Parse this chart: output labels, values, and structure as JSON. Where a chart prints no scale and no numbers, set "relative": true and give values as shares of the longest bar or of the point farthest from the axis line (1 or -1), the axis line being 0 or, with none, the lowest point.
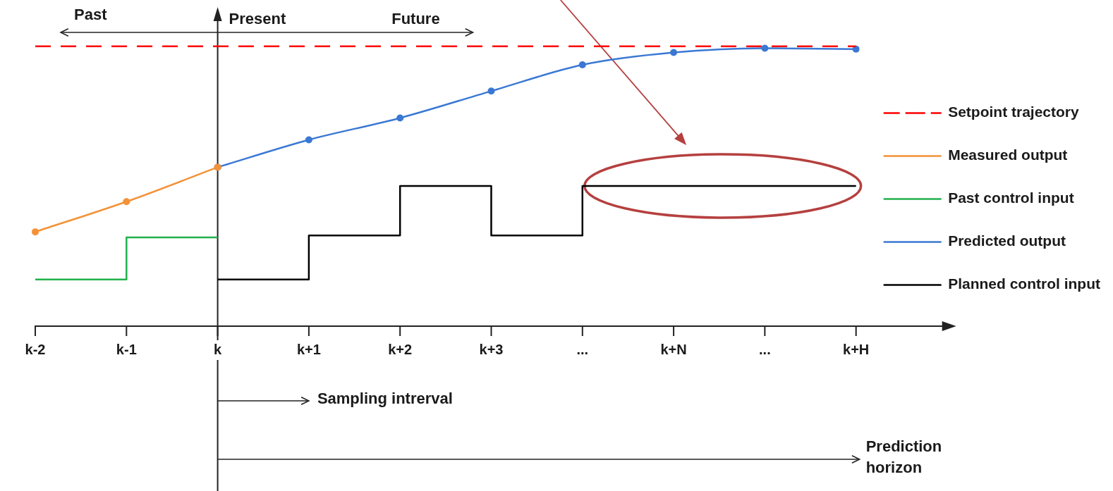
{
  "chart_data": {
    "type": "line",
    "relative": true,
    "categories": [
      "k-2",
      "k-1",
      "k",
      "k+1",
      "k+2",
      "k+3",
      "...",
      "k+N",
      "...",
      "k+H"
    ],
    "series": [
      {
        "name": "Setpoint trajectory",
        "color": "#ff0000",
        "line_style": "dashed",
        "marker": "none",
        "values": [
          1,
          1,
          1,
          1,
          1,
          1,
          1,
          1,
          1,
          1
        ]
      },
      {
        "name": "Measured output",
        "color": "#f39237",
        "marker": "circle",
        "values": [
          0.337,
          0.445,
          0.568,
          null,
          null,
          null,
          null,
          null,
          null,
          null
        ]
      },
      {
        "name": "Past control input",
        "type": "step",
        "color": "#22b14c",
        "marker": "none",
        "values": [
          0.167,
          0.317,
          0.317,
          null,
          null,
          null,
          null,
          null,
          null,
          null
        ]
      },
      {
        "name": "Predicted output",
        "color": "#3a78d4",
        "marker": "circle",
        "values": [
          null,
          null,
          0.568,
          0.666,
          0.744,
          0.84,
          0.934,
          0.978,
          0.993,
          0.99
        ]
      },
      {
        "name": "Planned control input",
        "type": "step",
        "color": "#000000",
        "marker": "none",
        "values": [
          null,
          null,
          0.167,
          0.324,
          0.501,
          0.324,
          0.501,
          0.501,
          0.501,
          0.501
        ]
      }
    ],
    "annotations": [
      "Past",
      "Present",
      "Future",
      "Sampling intrerval",
      "Prediction horizon"
    ],
    "legend": "right",
    "grid": false,
    "tick_labels": "x",
    "line_style": "solid"
  }
}
